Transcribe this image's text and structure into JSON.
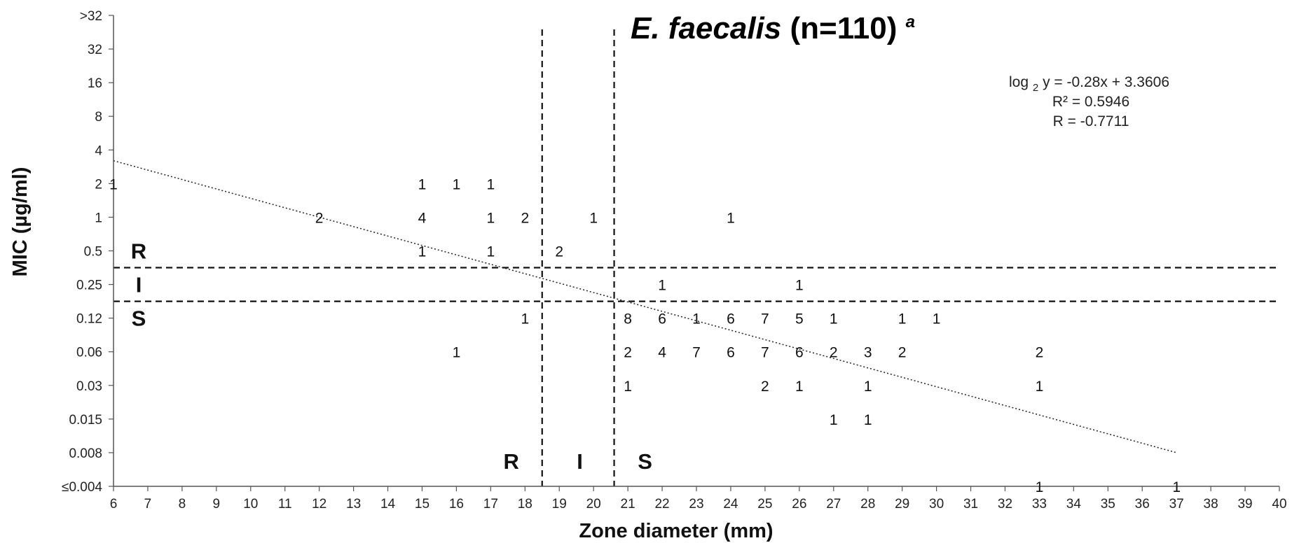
{
  "chart_data": {
    "type": "scatter",
    "title": {
      "organism": "E. faecalis",
      "count": " (n=110)",
      "superscript": "a"
    },
    "xlabel": "Zone diameter (mm)",
    "ylabel": "MIC (µg/ml)",
    "xlim": [
      6,
      40
    ],
    "x_ticks": [
      "6",
      "7",
      "8",
      "9",
      "10",
      "11",
      "12",
      "13",
      "14",
      "15",
      "16",
      "17",
      "18",
      "19",
      "20",
      "21",
      "22",
      "23",
      "24",
      "25",
      "26",
      "27",
      "28",
      "29",
      "30",
      "31",
      "32",
      "33",
      "34",
      "35",
      "36",
      "37",
      "38",
      "39",
      "40"
    ],
    "y_ticks": [
      "≤0.004",
      "0.008",
      "0.015",
      "0.03",
      "0.06",
      "0.12",
      "0.25",
      "0.5",
      "1",
      "2",
      "4",
      "8",
      "16",
      "32",
      ">32"
    ],
    "points": [
      {
        "x": 6,
        "y": "2",
        "n": 1
      },
      {
        "x": 15,
        "y": "2",
        "n": 1
      },
      {
        "x": 16,
        "y": "2",
        "n": 1
      },
      {
        "x": 17,
        "y": "2",
        "n": 1
      },
      {
        "x": 12,
        "y": "1",
        "n": 2
      },
      {
        "x": 15,
        "y": "1",
        "n": 4
      },
      {
        "x": 17,
        "y": "1",
        "n": 1
      },
      {
        "x": 18,
        "y": "1",
        "n": 2
      },
      {
        "x": 20,
        "y": "1",
        "n": 1
      },
      {
        "x": 24,
        "y": "1",
        "n": 1
      },
      {
        "x": 15,
        "y": "0.5",
        "n": 1
      },
      {
        "x": 17,
        "y": "0.5",
        "n": 1
      },
      {
        "x": 19,
        "y": "0.5",
        "n": 2
      },
      {
        "x": 22,
        "y": "0.25",
        "n": 1
      },
      {
        "x": 26,
        "y": "0.25",
        "n": 1
      },
      {
        "x": 18,
        "y": "0.12",
        "n": 1
      },
      {
        "x": 21,
        "y": "0.12",
        "n": 8
      },
      {
        "x": 22,
        "y": "0.12",
        "n": 6
      },
      {
        "x": 23,
        "y": "0.12",
        "n": 1
      },
      {
        "x": 24,
        "y": "0.12",
        "n": 6
      },
      {
        "x": 25,
        "y": "0.12",
        "n": 7
      },
      {
        "x": 26,
        "y": "0.12",
        "n": 5
      },
      {
        "x": 27,
        "y": "0.12",
        "n": 1
      },
      {
        "x": 29,
        "y": "0.12",
        "n": 1
      },
      {
        "x": 30,
        "y": "0.12",
        "n": 1
      },
      {
        "x": 16,
        "y": "0.06",
        "n": 1
      },
      {
        "x": 21,
        "y": "0.06",
        "n": 2
      },
      {
        "x": 22,
        "y": "0.06",
        "n": 4
      },
      {
        "x": 23,
        "y": "0.06",
        "n": 7
      },
      {
        "x": 24,
        "y": "0.06",
        "n": 6
      },
      {
        "x": 25,
        "y": "0.06",
        "n": 7
      },
      {
        "x": 26,
        "y": "0.06",
        "n": 6
      },
      {
        "x": 27,
        "y": "0.06",
        "n": 2
      },
      {
        "x": 28,
        "y": "0.06",
        "n": 3
      },
      {
        "x": 29,
        "y": "0.06",
        "n": 2
      },
      {
        "x": 33,
        "y": "0.06",
        "n": 2
      },
      {
        "x": 21,
        "y": "0.03",
        "n": 1
      },
      {
        "x": 25,
        "y": "0.03",
        "n": 2
      },
      {
        "x": 26,
        "y": "0.03",
        "n": 1
      },
      {
        "x": 28,
        "y": "0.03",
        "n": 1
      },
      {
        "x": 33,
        "y": "0.03",
        "n": 1
      },
      {
        "x": 27,
        "y": "0.015",
        "n": 1
      },
      {
        "x": 28,
        "y": "0.015",
        "n": 1
      },
      {
        "x": 33,
        "y": "≤0.004",
        "n": 1
      },
      {
        "x": 37,
        "y": "≤0.004",
        "n": 1
      }
    ],
    "trendline": {
      "style": "dotted",
      "slope": -0.28,
      "intercept": 3.3606,
      "x_range": [
        6,
        37
      ],
      "equation_lines": [
        {
          "prefix": "log",
          "subscript": "2",
          "rest": " y = -0.28x + 3.3606"
        },
        {
          "text": "R² = 0.5946"
        },
        {
          "text": "R = -0.7711"
        }
      ]
    },
    "breakpoints": {
      "style": "dashed",
      "x_vertical": [
        18.5,
        20.6
      ],
      "y_horizontal_between_ticks": [
        [
          "0.25",
          "0.5"
        ],
        [
          "0.12",
          "0.25"
        ]
      ]
    },
    "zone_labels_x": [
      {
        "text": "R",
        "x": 17.6
      },
      {
        "text": "I",
        "x": 19.6
      },
      {
        "text": "S",
        "x": 21.5
      }
    ],
    "zone_labels_y": [
      {
        "text": "R",
        "y": "0.5"
      },
      {
        "text": "I",
        "y": "0.25"
      },
      {
        "text": "S",
        "y": "0.12"
      }
    ]
  }
}
